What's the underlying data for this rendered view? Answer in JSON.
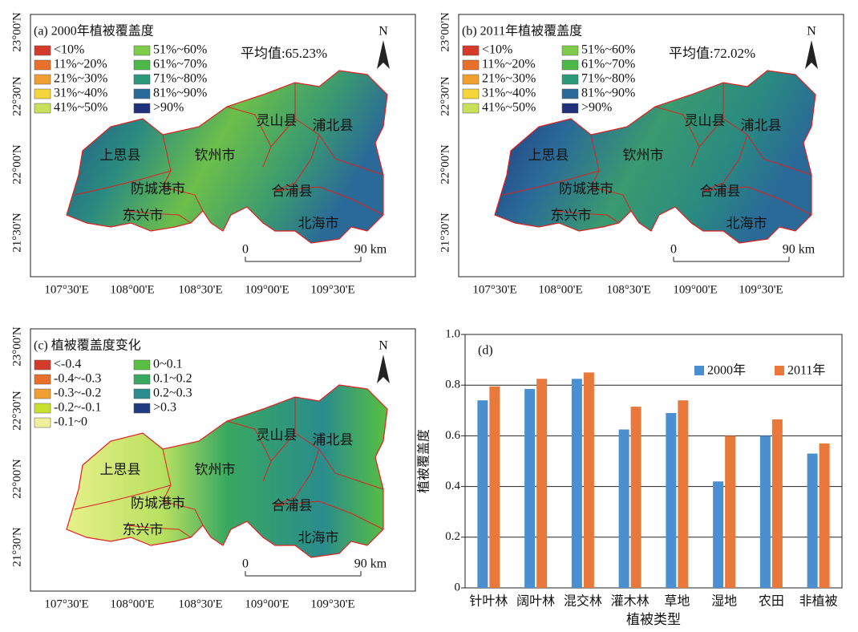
{
  "maps": [
    {
      "title": "(a) 2000年植被覆盖度",
      "mean": "平均值:65.23%",
      "north": "N",
      "scale": [
        "0",
        "90 km"
      ],
      "legend": [
        {
          "label": "<10%",
          "color": "#d63a2a"
        },
        {
          "label": "11%~20%",
          "color": "#e8702a"
        },
        {
          "label": "21%~30%",
          "color": "#f0a030"
        },
        {
          "label": "31%~40%",
          "color": "#f5d63a"
        },
        {
          "label": "41%~50%",
          "color": "#c8e05a"
        },
        {
          "label": "51%~60%",
          "color": "#7fcc4a"
        },
        {
          "label": "61%~70%",
          "color": "#4cb848"
        },
        {
          "label": "71%~80%",
          "color": "#2a9a7a"
        },
        {
          "label": "81%~90%",
          "color": "#2a6a98"
        },
        {
          "label": ">90%",
          "color": "#20307a"
        }
      ],
      "places": [
        "上思县",
        "钦州市",
        "灵山县",
        "浦北县",
        "防城港市",
        "东兴市",
        "合浦县",
        "北海市"
      ],
      "lat_labels": [
        "23°00'N",
        "22°30'N",
        "22°00'N",
        "21°30'N"
      ],
      "lon_labels": [
        "107°30'E",
        "108°00'E",
        "108°30'E",
        "109°00'E",
        "109°30'E"
      ]
    },
    {
      "title": "(b) 2011年植被覆盖度",
      "mean": "平均值:72.02%",
      "north": "N",
      "scale": [
        "0",
        "90 km"
      ],
      "legend": [
        {
          "label": "<10%",
          "color": "#d63a2a"
        },
        {
          "label": "11%~20%",
          "color": "#e8702a"
        },
        {
          "label": "21%~30%",
          "color": "#f0a030"
        },
        {
          "label": "31%~40%",
          "color": "#f5d63a"
        },
        {
          "label": "41%~50%",
          "color": "#c8e05a"
        },
        {
          "label": "51%~60%",
          "color": "#7fcc4a"
        },
        {
          "label": "61%~70%",
          "color": "#4cb848"
        },
        {
          "label": "71%~80%",
          "color": "#2a9a7a"
        },
        {
          "label": "81%~90%",
          "color": "#2a6a98"
        },
        {
          "label": ">90%",
          "color": "#20307a"
        }
      ],
      "places": [
        "上思县",
        "钦州市",
        "灵山县",
        "浦北县",
        "防城港市",
        "东兴市",
        "合浦县",
        "北海市"
      ],
      "lat_labels": [
        "23°00'N",
        "22°30'N",
        "22°00'N",
        "21°30'N"
      ],
      "lon_labels": [
        "107°30'E",
        "108°00'E",
        "108°30'E",
        "109°00'E",
        "109°30'E"
      ]
    },
    {
      "title": "(c) 植被覆盖度变化",
      "north": "N",
      "scale": [
        "0",
        "90 km"
      ],
      "legend": [
        {
          "label": "<-0.4",
          "color": "#d63a2a"
        },
        {
          "label": "-0.4~-0.3",
          "color": "#e8702a"
        },
        {
          "label": "-0.3~-0.2",
          "color": "#f0a030"
        },
        {
          "label": "-0.2~-0.1",
          "color": "#c8e030"
        },
        {
          "label": "-0.1~0",
          "color": "#eef09a"
        },
        {
          "label": "0~0.1",
          "color": "#58c040"
        },
        {
          "label": "0.1~0.2",
          "color": "#38a860"
        },
        {
          "label": "0.2~0.3",
          "color": "#2a8c8c"
        },
        {
          "label": ">0.3",
          "color": "#203a80"
        }
      ],
      "places": [
        "上思县",
        "钦州市",
        "灵山县",
        "浦北县",
        "防城港市",
        "东兴市",
        "合浦县",
        "北海市"
      ],
      "lat_labels": [
        "23°00'N",
        "22°30'N",
        "22°00'N",
        "21°30'N"
      ],
      "lon_labels": [
        "107°30'E",
        "108°00'E",
        "108°30'E",
        "109°00'E",
        "109°30'E"
      ]
    }
  ],
  "chart_data": {
    "type": "bar",
    "panel_label": "(d)",
    "x_label": "植被类型",
    "y_label": "植被覆盖度",
    "categories": [
      "针叶林",
      "阔叶林",
      "混交林",
      "灌木林",
      "草地",
      "湿地",
      "农田",
      "非植被"
    ],
    "series": [
      {
        "name": "2000年",
        "color": "#4a8fd0",
        "values": [
          0.74,
          0.785,
          0.825,
          0.625,
          0.69,
          0.42,
          0.6,
          0.53
        ]
      },
      {
        "name": "2011年",
        "color": "#e8793a",
        "values": [
          0.795,
          0.825,
          0.85,
          0.715,
          0.74,
          0.6,
          0.665,
          0.57
        ]
      }
    ],
    "ylim": [
      0,
      1
    ],
    "yticks": [
      0,
      0.2,
      0.4,
      0.6,
      0.8,
      {
        "value": 1,
        "label": "1.0"
      }
    ],
    "grid": true,
    "legend": "upper right"
  }
}
